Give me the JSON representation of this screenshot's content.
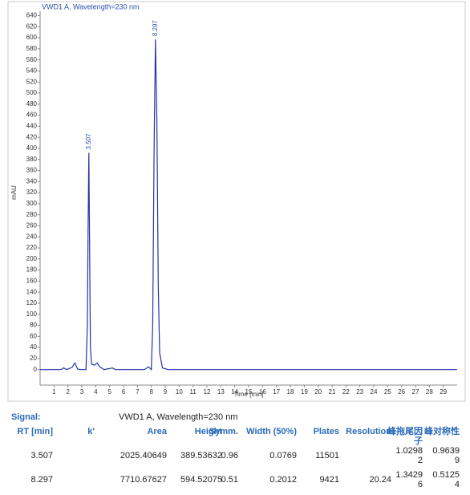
{
  "chart_data": {
    "type": "line",
    "title": "VWD1 A, Wavelength=230 nm",
    "x_label": "Time [min]",
    "y_label": "mAU",
    "x": [
      0,
      1.5,
      1.7,
      1.9,
      2.3,
      2.5,
      2.7,
      2.9,
      3.3,
      3.4,
      3.45,
      3.507,
      3.56,
      3.62,
      3.7,
      3.9,
      4.1,
      4.3,
      4.6,
      5.2,
      5.4,
      5.6,
      7.5,
      7.8,
      8.0,
      8.1,
      8.2,
      8.297,
      8.4,
      8.5,
      8.6,
      8.8,
      9.2,
      30
    ],
    "series": [
      {
        "name": "VWD1 A",
        "color": "#2233aa",
        "values": [
          0,
          0,
          3,
          0,
          4,
          12,
          1,
          0,
          0,
          80,
          250,
          392,
          220,
          40,
          10,
          8,
          12,
          5,
          0,
          3,
          0,
          0,
          0,
          5,
          0,
          80,
          400,
          597,
          450,
          150,
          30,
          3,
          0,
          0
        ]
      }
    ],
    "peaks": [
      3.507,
      8.297
    ],
    "xlim": [
      0,
      30
    ],
    "ylim": [
      -28,
      648
    ],
    "xticks": [
      1,
      2,
      3,
      4,
      5,
      6,
      7,
      8,
      9,
      10,
      11,
      12,
      13,
      14,
      15,
      16,
      17,
      18,
      19,
      20,
      21,
      22,
      23,
      24,
      25,
      26,
      27,
      28,
      29
    ],
    "yticks": [
      0,
      20,
      40,
      60,
      80,
      100,
      120,
      140,
      160,
      180,
      200,
      220,
      240,
      260,
      280,
      300,
      320,
      340,
      360,
      380,
      400,
      420,
      440,
      460,
      480,
      500,
      520,
      540,
      560,
      580,
      600,
      620,
      640
    ]
  },
  "report": {
    "signal_label": "Signal:",
    "signal": "VWD1 A, Wavelength=230 nm",
    "headers": [
      "RT [min]",
      "k'",
      "Area",
      "Height",
      "Symm.",
      "Width (50%)",
      "Plates",
      "Resolution",
      "峰拖尾因子",
      "峰对称性"
    ],
    "rows": [
      [
        "3.507",
        null,
        "2025.40649",
        "389.53632",
        "0.96",
        "0.0769",
        "11501",
        null,
        "1.02982",
        "0.96399"
      ],
      [
        "8.297",
        null,
        "7710.67627",
        "594.52075",
        "0.51",
        "0.2012",
        "9421",
        "20.24",
        "1.34296",
        "0.51254"
      ]
    ]
  }
}
